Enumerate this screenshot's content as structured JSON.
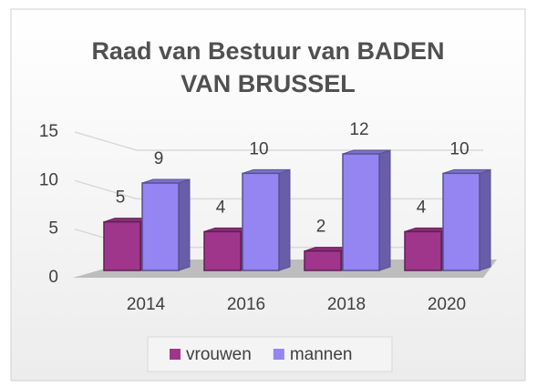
{
  "chart_data": {
    "type": "bar3d",
    "title": "Raad van Bestuur van BADEN VAN BRUSSEL",
    "categories": [
      "2014",
      "2016",
      "2018",
      "2020"
    ],
    "series": [
      {
        "name": "vrouwen",
        "color": "#a0368c",
        "values": [
          5,
          4,
          2,
          4
        ]
      },
      {
        "name": "mannen",
        "color": "#9485f2",
        "values": [
          9,
          10,
          12,
          10
        ]
      }
    ],
    "ylim": [
      0,
      15
    ],
    "yticks": [
      0,
      5,
      10,
      15
    ],
    "grid": true,
    "legend": "bottom",
    "data_labels": true
  }
}
